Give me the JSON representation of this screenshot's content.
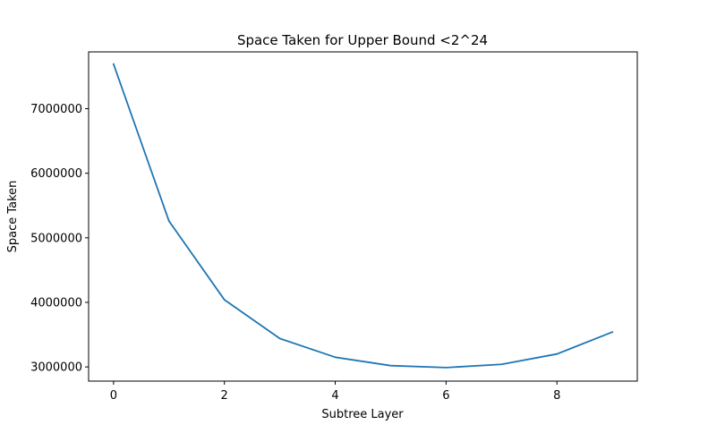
{
  "chart_data": {
    "type": "line",
    "title": "Space Taken for Upper Bound <2^24",
    "xlabel": "Subtree Layer",
    "ylabel": "Space Taken",
    "xlim": [
      -0.45,
      9.45
    ],
    "ylim": [
      2780000,
      7880000
    ],
    "xticks": [
      0,
      2,
      4,
      6,
      8
    ],
    "xtick_labels": [
      "0",
      "2",
      "4",
      "6",
      "8"
    ],
    "yticks": [
      3000000,
      4000000,
      5000000,
      6000000,
      7000000
    ],
    "ytick_labels": [
      "3000000",
      "4000000",
      "5000000",
      "6000000",
      "7000000"
    ],
    "grid": false,
    "legend": "none",
    "series": [
      {
        "color": "#1f77b4",
        "x": [
          0,
          1,
          2,
          3,
          4,
          5,
          6,
          7,
          8,
          9
        ],
        "y": [
          7690000,
          5260000,
          4040000,
          3440000,
          3150000,
          3020000,
          2990000,
          3040000,
          3200000,
          3540000
        ]
      }
    ]
  }
}
